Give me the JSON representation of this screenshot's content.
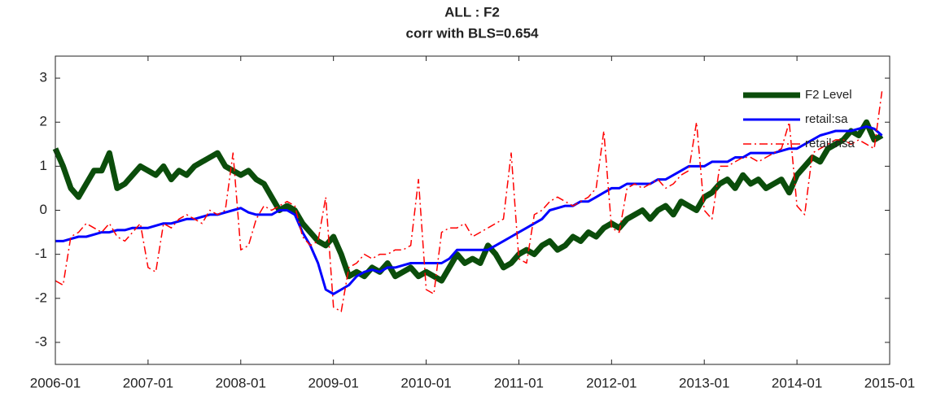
{
  "chart_data": {
    "type": "line",
    "title": "ALL : F2",
    "subtitle": "corr with BLS=0.654",
    "x": [
      "2006-01",
      "2006-02",
      "2006-03",
      "2006-04",
      "2006-05",
      "2006-06",
      "2006-07",
      "2006-08",
      "2006-09",
      "2006-10",
      "2006-11",
      "2006-12",
      "2007-01",
      "2007-02",
      "2007-03",
      "2007-04",
      "2007-05",
      "2007-06",
      "2007-07",
      "2007-08",
      "2007-09",
      "2007-10",
      "2007-11",
      "2007-12",
      "2008-01",
      "2008-02",
      "2008-03",
      "2008-04",
      "2008-05",
      "2008-06",
      "2008-07",
      "2008-08",
      "2008-09",
      "2008-10",
      "2008-11",
      "2008-12",
      "2009-01",
      "2009-02",
      "2009-03",
      "2009-04",
      "2009-05",
      "2009-06",
      "2009-07",
      "2009-08",
      "2009-09",
      "2009-10",
      "2009-11",
      "2009-12",
      "2010-01",
      "2010-02",
      "2010-03",
      "2010-04",
      "2010-05",
      "2010-06",
      "2010-07",
      "2010-08",
      "2010-09",
      "2010-10",
      "2010-11",
      "2010-12",
      "2011-01",
      "2011-02",
      "2011-03",
      "2011-04",
      "2011-05",
      "2011-06",
      "2011-07",
      "2011-08",
      "2011-09",
      "2011-10",
      "2011-11",
      "2011-12",
      "2012-01",
      "2012-02",
      "2012-03",
      "2012-04",
      "2012-05",
      "2012-06",
      "2012-07",
      "2012-08",
      "2012-09",
      "2012-10",
      "2012-11",
      "2012-12",
      "2013-01",
      "2013-02",
      "2013-03",
      "2013-04",
      "2013-05",
      "2013-06",
      "2013-07",
      "2013-08",
      "2013-09",
      "2013-10",
      "2013-11",
      "2013-12",
      "2014-01",
      "2014-02",
      "2014-03",
      "2014-04",
      "2014-05",
      "2014-06",
      "2014-07",
      "2014-08",
      "2014-09",
      "2014-10",
      "2014-11",
      "2014-12"
    ],
    "series": [
      {
        "name": "F2 Level",
        "color": "#0b4d0b",
        "width": 7,
        "dash": "solid",
        "values": [
          1.4,
          1.0,
          0.5,
          0.3,
          0.6,
          0.9,
          0.9,
          1.3,
          0.5,
          0.6,
          0.8,
          1.0,
          0.9,
          0.8,
          1.0,
          0.7,
          0.9,
          0.8,
          1.0,
          1.1,
          1.2,
          1.3,
          1.0,
          0.9,
          0.8,
          0.9,
          0.7,
          0.6,
          0.3,
          0.0,
          0.1,
          0.0,
          -0.3,
          -0.5,
          -0.7,
          -0.8,
          -0.6,
          -1.0,
          -1.5,
          -1.4,
          -1.5,
          -1.3,
          -1.4,
          -1.2,
          -1.5,
          -1.4,
          -1.3,
          -1.5,
          -1.4,
          -1.5,
          -1.6,
          -1.3,
          -1.0,
          -1.2,
          -1.1,
          -1.2,
          -0.8,
          -1.0,
          -1.3,
          -1.2,
          -1.0,
          -0.9,
          -1.0,
          -0.8,
          -0.7,
          -0.9,
          -0.8,
          -0.6,
          -0.7,
          -0.5,
          -0.6,
          -0.4,
          -0.3,
          -0.4,
          -0.2,
          -0.1,
          0.0,
          -0.2,
          0.0,
          0.1,
          -0.1,
          0.2,
          0.1,
          0.0,
          0.3,
          0.4,
          0.6,
          0.7,
          0.5,
          0.8,
          0.6,
          0.7,
          0.5,
          0.6,
          0.7,
          0.4,
          0.8,
          1.0,
          1.2,
          1.1,
          1.4,
          1.5,
          1.6,
          1.8,
          1.7,
          2.0,
          1.6,
          1.7
        ]
      },
      {
        "name": "retail:sa",
        "color": "#0000ff",
        "width": 3,
        "dash": "solid",
        "values": [
          -0.7,
          -0.7,
          -0.65,
          -0.6,
          -0.6,
          -0.55,
          -0.5,
          -0.5,
          -0.45,
          -0.45,
          -0.4,
          -0.4,
          -0.4,
          -0.35,
          -0.3,
          -0.3,
          -0.25,
          -0.2,
          -0.2,
          -0.15,
          -0.1,
          -0.1,
          -0.05,
          0.0,
          0.05,
          -0.05,
          -0.1,
          -0.1,
          -0.1,
          0.0,
          0.0,
          -0.1,
          -0.5,
          -0.8,
          -1.2,
          -1.8,
          -1.9,
          -1.8,
          -1.7,
          -1.5,
          -1.4,
          -1.35,
          -1.4,
          -1.3,
          -1.3,
          -1.25,
          -1.2,
          -1.2,
          -1.2,
          -1.2,
          -1.2,
          -1.1,
          -0.9,
          -0.9,
          -0.9,
          -0.9,
          -0.9,
          -0.8,
          -0.7,
          -0.6,
          -0.5,
          -0.4,
          -0.3,
          -0.2,
          0.0,
          0.05,
          0.1,
          0.1,
          0.2,
          0.2,
          0.3,
          0.4,
          0.5,
          0.5,
          0.6,
          0.6,
          0.6,
          0.6,
          0.7,
          0.7,
          0.8,
          0.9,
          1.0,
          1.0,
          1.0,
          1.1,
          1.1,
          1.1,
          1.2,
          1.2,
          1.3,
          1.3,
          1.3,
          1.3,
          1.35,
          1.4,
          1.4,
          1.5,
          1.6,
          1.7,
          1.75,
          1.8,
          1.8,
          1.8,
          1.85,
          1.9,
          1.85,
          1.7
        ]
      },
      {
        "name": "retail:nsa",
        "color": "#ff0000",
        "width": 1.5,
        "dash": "dashdot",
        "values": [
          -1.6,
          -1.7,
          -0.6,
          -0.5,
          -0.3,
          -0.4,
          -0.5,
          -0.3,
          -0.6,
          -0.7,
          -0.5,
          -0.3,
          -1.3,
          -1.4,
          -0.3,
          -0.4,
          -0.2,
          -0.1,
          -0.2,
          -0.3,
          0.0,
          -0.1,
          0.0,
          1.3,
          -0.9,
          -0.8,
          -0.2,
          0.1,
          0.0,
          0.1,
          0.2,
          0.1,
          -0.6,
          -0.8,
          -0.7,
          0.3,
          -2.2,
          -2.3,
          -1.3,
          -1.2,
          -1.0,
          -1.1,
          -1.0,
          -1.0,
          -0.9,
          -0.9,
          -0.8,
          0.7,
          -1.8,
          -1.9,
          -0.5,
          -0.4,
          -0.4,
          -0.3,
          -0.6,
          -0.5,
          -0.4,
          -0.3,
          -0.2,
          1.3,
          -1.1,
          -1.2,
          -0.1,
          0.0,
          0.2,
          0.3,
          0.2,
          0.1,
          0.2,
          0.3,
          0.5,
          1.8,
          -0.4,
          -0.5,
          0.5,
          0.6,
          0.5,
          0.6,
          0.7,
          0.5,
          0.6,
          0.8,
          0.9,
          2.0,
          0.0,
          -0.2,
          1.0,
          1.0,
          1.1,
          1.2,
          1.2,
          1.1,
          1.2,
          1.3,
          1.4,
          2.0,
          0.1,
          -0.1,
          1.3,
          1.4,
          1.5,
          1.6,
          1.6,
          1.5,
          1.6,
          1.5,
          1.4,
          2.7
        ]
      }
    ],
    "xlim": [
      "2006-01",
      "2015-01"
    ],
    "xticks": [
      "2006-01",
      "2007-01",
      "2008-01",
      "2009-01",
      "2010-01",
      "2011-01",
      "2012-01",
      "2013-01",
      "2014-01",
      "2015-01"
    ],
    "ylim": [
      -3.5,
      3.5
    ],
    "yticks": [
      -3,
      -2,
      -1,
      0,
      1,
      2,
      3
    ],
    "legend": "northeast",
    "grid": false
  }
}
